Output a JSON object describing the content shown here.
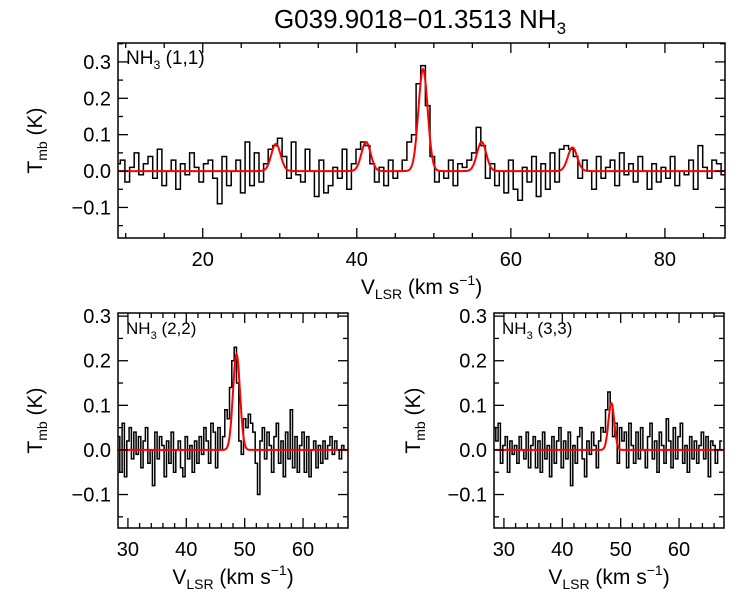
{
  "chart_data": {
    "title": "G039.9018−01.3513 NH",
    "title_sub": "3",
    "colors": {
      "spectrum": "#000000",
      "fit": "#ff0000"
    },
    "panels": [
      {
        "type": "line",
        "style": "histogram",
        "label": "NH",
        "label_sub": "3",
        "label_rest": " (1,1)",
        "xlabel": "V",
        "xlabel_sub": "LSR",
        "xlabel_rest": " (km s",
        "xlabel_sup": "−1",
        "xlabel_end": ")",
        "ylabel": "T",
        "ylabel_sub": "mb",
        "ylabel_rest": " (K)",
        "xlim": [
          9.0,
          87.8
        ],
        "ylim": [
          -0.184,
          0.352
        ],
        "xticks": [
          20,
          40,
          60,
          80
        ],
        "xminor": 5,
        "yticks": [
          -0.1,
          0.0,
          0.1,
          0.2,
          0.3
        ],
        "yminor": 0.05,
        "spectrum": {
          "x_start": 9.0,
          "channel_width": 0.6,
          "y": [
            0.02,
            0.03,
            -0.03,
            0.01,
            0.05,
            -0.01,
            0.02,
            0.04,
            -0.02,
            0.06,
            -0.04,
            0.0,
            0.03,
            -0.05,
            0.02,
            -0.01,
            0.05,
            0.01,
            -0.03,
            0.02,
            0.03,
            -0.02,
            -0.09,
            0.04,
            -0.04,
            0.0,
            0.03,
            -0.06,
            0.08,
            -0.04,
            0.05,
            -0.03,
            0.02,
            0.06,
            0.07,
            0.09,
            0.04,
            -0.02,
            0.08,
            -0.01,
            -0.03,
            0.06,
            0.0,
            -0.07,
            0.03,
            -0.06,
            -0.04,
            0.01,
            -0.02,
            0.06,
            -0.05,
            0.02,
            0.06,
            0.08,
            0.07,
            0.02,
            -0.03,
            0.01,
            -0.04,
            0.03,
            -0.02,
            0.0,
            0.03,
            0.08,
            0.1,
            0.24,
            0.29,
            0.18,
            0.04,
            -0.03,
            0.0,
            -0.02,
            0.03,
            -0.04,
            0.02,
            0.01,
            0.03,
            0.05,
            0.12,
            0.07,
            -0.02,
            0.02,
            -0.04,
            0.0,
            -0.06,
            0.03,
            -0.05,
            -0.08,
            0.01,
            -0.03,
            0.04,
            -0.07,
            0.02,
            -0.05,
            0.05,
            -0.03,
            0.06,
            0.07,
            0.06,
            0.04,
            -0.02,
            0.03,
            0.0,
            -0.05,
            0.04,
            -0.02,
            0.01,
            0.03,
            -0.04,
            0.05,
            -0.01,
            0.02,
            -0.03,
            0.04,
            0.0,
            -0.05,
            0.02,
            -0.03,
            0.01,
            -0.02,
            0.04,
            -0.04,
            0.0,
            -0.01,
            0.03,
            -0.05,
            0.07,
            0.01,
            -0.02,
            0.03,
            0.02,
            -0.01
          ]
        },
        "fit_components": [
          {
            "center": 29.5,
            "amplitude": 0.075,
            "sigma": 0.6
          },
          {
            "center": 41.2,
            "amplitude": 0.08,
            "sigma": 0.6
          },
          {
            "center": 48.6,
            "amplitude": 0.28,
            "sigma": 0.6
          },
          {
            "center": 56.2,
            "amplitude": 0.08,
            "sigma": 0.6
          },
          {
            "center": 68.0,
            "amplitude": 0.065,
            "sigma": 0.6
          }
        ]
      },
      {
        "type": "line",
        "style": "histogram",
        "label": "NH",
        "label_sub": "3",
        "label_rest": " (2,2)",
        "xlabel": "V",
        "xlabel_sub": "LSR",
        "xlabel_rest": " (km s",
        "xlabel_sup": "−1",
        "xlabel_end": ")",
        "ylabel": "T",
        "ylabel_sub": "mb",
        "ylabel_rest": " (K)",
        "xlim": [
          28.3,
          67.7
        ],
        "ylim": [
          -0.175,
          0.307
        ],
        "xticks": [
          30,
          40,
          50,
          60
        ],
        "xminor": 2,
        "yticks": [
          -0.1,
          0.0,
          0.1,
          0.2,
          0.3
        ],
        "yminor": 0.05,
        "spectrum": {
          "x_start": 28.4,
          "channel_width": 0.4,
          "y": [
            0.03,
            -0.05,
            0.06,
            -0.06,
            0.02,
            0.05,
            -0.02,
            0.04,
            -0.01,
            0.03,
            -0.04,
            0.02,
            0.05,
            -0.03,
            0.0,
            -0.08,
            0.04,
            -0.02,
            0.03,
            0.01,
            -0.06,
            0.02,
            -0.03,
            0.04,
            -0.05,
            0.0,
            0.02,
            -0.04,
            -0.06,
            0.03,
            -0.02,
            0.01,
            -0.05,
            0.02,
            -0.03,
            0.03,
            -0.01,
            0.05,
            0.02,
            -0.03,
            0.06,
            0.04,
            -0.04,
            0.05,
            0.0,
            0.03,
            0.09,
            0.07,
            0.14,
            0.2,
            0.23,
            0.15,
            0.02,
            -0.01,
            0.07,
            0.05,
            0.08,
            0.06,
            0.04,
            -0.03,
            -0.1,
            0.02,
            0.05,
            -0.02,
            0.04,
            0.01,
            -0.05,
            0.03,
            0.06,
            -0.03,
            0.02,
            -0.06,
            0.04,
            -0.02,
            0.09,
            -0.04,
            0.03,
            -0.05,
            0.01,
            0.04,
            -0.05,
            0.03,
            -0.06,
            0.0,
            0.02,
            -0.04,
            0.01,
            -0.03,
            0.02,
            -0.02,
            0.01,
            0.03,
            -0.01,
            0.02,
            0.0,
            -0.02,
            0.01,
            0.0
          ]
        },
        "fit_components": [
          {
            "center": 48.6,
            "amplitude": 0.215,
            "sigma": 0.6
          }
        ]
      },
      {
        "type": "line",
        "style": "histogram",
        "label": "NH",
        "label_sub": "3",
        "label_rest": " (3,3)",
        "xlabel": "V",
        "xlabel_sub": "LSR",
        "xlabel_rest": " (km s",
        "xlabel_sup": "−1",
        "xlabel_end": ")",
        "ylabel": "T",
        "ylabel_sub": "mb",
        "ylabel_rest": " (K)",
        "xlim": [
          28.3,
          67.7
        ],
        "ylim": [
          -0.175,
          0.307
        ],
        "xticks": [
          30,
          40,
          50,
          60
        ],
        "xminor": 2,
        "yticks": [
          -0.1,
          0.0,
          0.1,
          0.2,
          0.3
        ],
        "yminor": 0.05,
        "spectrum": {
          "x_start": 28.4,
          "channel_width": 0.4,
          "y": [
            0.05,
            0.02,
            0.06,
            -0.03,
            0.01,
            0.03,
            -0.05,
            0.02,
            -0.01,
            0.01,
            -0.03,
            0.03,
            0.0,
            -0.02,
            0.04,
            -0.04,
            0.01,
            0.03,
            -0.04,
            0.02,
            -0.05,
            0.04,
            -0.02,
            0.01,
            -0.06,
            0.03,
            -0.03,
            0.02,
            0.05,
            -0.04,
            0.02,
            -0.02,
            0.04,
            -0.08,
            0.01,
            -0.03,
            0.03,
            0.05,
            -0.02,
            -0.06,
            0.02,
            -0.01,
            0.04,
            0.01,
            -0.04,
            0.02,
            0.05,
            0.04,
            0.09,
            0.13,
            0.1,
            0.03,
            0.06,
            -0.03,
            0.05,
            0.02,
            0.04,
            -0.04,
            0.06,
            0.01,
            -0.03,
            0.04,
            -0.02,
            0.05,
            0.0,
            -0.04,
            0.03,
            0.06,
            -0.02,
            0.02,
            -0.05,
            0.04,
            0.01,
            -0.03,
            0.07,
            0.02,
            -0.04,
            0.05,
            -0.02,
            0.03,
            0.06,
            -0.03,
            0.01,
            -0.05,
            0.03,
            -0.02,
            0.02,
            -0.03,
            0.01,
            0.04,
            -0.02,
            0.03,
            -0.06,
            0.02,
            0.01,
            -0.03,
            0.0,
            0.02
          ]
        },
        "fit_components": [
          {
            "center": 48.4,
            "amplitude": 0.105,
            "sigma": 0.5
          }
        ]
      }
    ]
  }
}
